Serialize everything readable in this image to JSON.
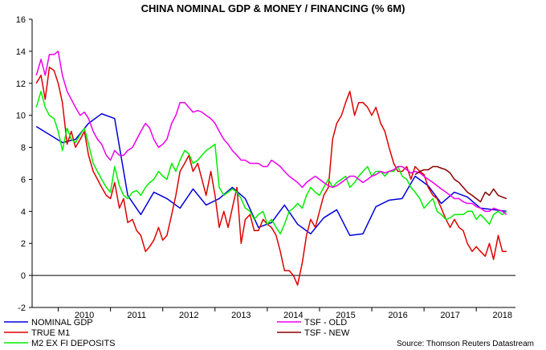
{
  "chart_data": {
    "type": "line",
    "title": "CHINA NOMINAL GDP & MONEY / FINANCING (% 6M)",
    "source": "Source: Thomson Reuters Datastream",
    "ylim": [
      -2,
      16
    ],
    "yticks": [
      -2,
      0,
      2,
      4,
      6,
      8,
      10,
      12,
      14,
      16
    ],
    "xlim": [
      2009.5,
      2018.75
    ],
    "year_labels": [
      "2010",
      "2011",
      "2012",
      "2013",
      "2014",
      "2015",
      "2016",
      "2017",
      "2018"
    ],
    "grid": false,
    "legend": "bottom",
    "series": [
      {
        "name": "NOMINAL GDP",
        "color": "#0000dd",
        "x": [
          2009.58,
          2009.83,
          2010.08,
          2010.33,
          2010.58,
          2010.83,
          2011.08,
          2011.33,
          2011.58,
          2011.83,
          2012.08,
          2012.33,
          2012.58,
          2012.83,
          2013.08,
          2013.33,
          2013.58,
          2013.83,
          2014.08,
          2014.33,
          2014.58,
          2014.83,
          2015.08,
          2015.33,
          2015.58,
          2015.83,
          2016.08,
          2016.33,
          2016.58,
          2016.83,
          2017.08,
          2017.33,
          2017.58,
          2017.83,
          2018.08,
          2018.33,
          2018.58
        ],
        "values": [
          9.3,
          8.8,
          8.3,
          8.5,
          9.5,
          10.1,
          9.8,
          5.0,
          3.8,
          5.2,
          4.8,
          4.2,
          5.4,
          4.4,
          4.8,
          5.5,
          4.8,
          3.0,
          3.3,
          4.4,
          3.2,
          2.6,
          3.6,
          4.1,
          2.5,
          2.6,
          4.3,
          4.7,
          4.8,
          6.2,
          5.6,
          4.5,
          5.2,
          4.9,
          4.2,
          4.1,
          4.0
        ]
      },
      {
        "name": "TRUE M1",
        "color": "#dd0000",
        "x": [
          2009.58,
          2009.67,
          2009.75,
          2009.83,
          2009.92,
          2010.0,
          2010.08,
          2010.17,
          2010.25,
          2010.33,
          2010.42,
          2010.5,
          2010.58,
          2010.67,
          2010.75,
          2010.83,
          2010.92,
          2011.0,
          2011.08,
          2011.17,
          2011.25,
          2011.33,
          2011.42,
          2011.5,
          2011.58,
          2011.67,
          2011.75,
          2011.83,
          2011.92,
          2012.0,
          2012.08,
          2012.17,
          2012.25,
          2012.33,
          2012.42,
          2012.5,
          2012.58,
          2012.67,
          2012.75,
          2012.83,
          2012.92,
          2013.0,
          2013.08,
          2013.17,
          2013.25,
          2013.33,
          2013.42,
          2013.5,
          2013.58,
          2013.67,
          2013.75,
          2013.83,
          2013.92,
          2014.0,
          2014.08,
          2014.17,
          2014.25,
          2014.33,
          2014.42,
          2014.5,
          2014.58,
          2014.67,
          2014.75,
          2014.83,
          2014.92,
          2015.0,
          2015.08,
          2015.17,
          2015.25,
          2015.33,
          2015.42,
          2015.5,
          2015.58,
          2015.67,
          2015.75,
          2015.83,
          2015.92,
          2016.0,
          2016.08,
          2016.17,
          2016.25,
          2016.33,
          2016.42,
          2016.5,
          2016.58,
          2016.67,
          2016.75,
          2016.83,
          2016.92,
          2017.0,
          2017.08,
          2017.17,
          2017.25,
          2017.33,
          2017.42,
          2017.5,
          2017.58,
          2017.67,
          2017.75,
          2017.83,
          2017.92,
          2018.0,
          2018.08,
          2018.17,
          2018.25,
          2018.33,
          2018.42,
          2018.5,
          2018.58
        ],
        "values": [
          12.0,
          12.5,
          11.0,
          13.0,
          12.8,
          12.0,
          10.8,
          8.2,
          9.0,
          8.0,
          8.5,
          9.0,
          7.5,
          6.5,
          6.0,
          5.5,
          5.0,
          4.8,
          5.8,
          4.2,
          4.8,
          3.3,
          3.5,
          2.8,
          2.5,
          1.5,
          1.8,
          2.2,
          3.0,
          2.2,
          2.5,
          3.8,
          5.0,
          6.5,
          7.0,
          7.5,
          6.5,
          7.0,
          6.0,
          5.0,
          6.5,
          5.0,
          3.0,
          4.0,
          3.0,
          4.2,
          5.5,
          2.0,
          3.5,
          3.8,
          2.8,
          2.8,
          3.5,
          3.2,
          3.0,
          2.5,
          1.5,
          0.3,
          0.3,
          0.0,
          -0.6,
          0.8,
          2.5,
          3.5,
          3.0,
          4.0,
          5.0,
          5.5,
          8.5,
          9.5,
          10.0,
          10.8,
          11.5,
          10.0,
          10.8,
          10.8,
          10.5,
          10.0,
          10.5,
          9.5,
          9.0,
          8.0,
          7.0,
          6.5,
          6.5,
          6.8,
          6.0,
          6.8,
          6.5,
          6.3,
          5.5,
          5.0,
          4.8,
          4.2,
          3.5,
          3.0,
          3.5,
          3.0,
          2.8,
          2.0,
          1.5,
          1.8,
          1.5,
          1.2,
          2.0,
          1.0,
          2.5,
          1.5,
          1.5
        ]
      },
      {
        "name": "M2 EX FI DEPOSITS",
        "color": "#00ee00",
        "x": [
          2009.58,
          2009.67,
          2009.75,
          2009.83,
          2009.92,
          2010.0,
          2010.08,
          2010.17,
          2010.25,
          2010.33,
          2010.42,
          2010.5,
          2010.58,
          2010.67,
          2010.75,
          2010.83,
          2010.92,
          2011.0,
          2011.08,
          2011.17,
          2011.25,
          2011.33,
          2011.42,
          2011.5,
          2011.58,
          2011.67,
          2011.75,
          2011.83,
          2011.92,
          2012.0,
          2012.08,
          2012.17,
          2012.25,
          2012.33,
          2012.42,
          2012.5,
          2012.58,
          2012.67,
          2012.75,
          2012.83,
          2012.92,
          2013.0,
          2013.08,
          2013.17,
          2013.25,
          2013.33,
          2013.42,
          2013.5,
          2013.58,
          2013.67,
          2013.75,
          2013.83,
          2013.92,
          2014.0,
          2014.08,
          2014.17,
          2014.25,
          2014.33,
          2014.42,
          2014.5,
          2014.58,
          2014.67,
          2014.75,
          2014.83,
          2014.92,
          2015.0,
          2015.08,
          2015.17,
          2015.25,
          2015.33,
          2015.42,
          2015.5,
          2015.58,
          2015.67,
          2015.75,
          2015.83,
          2015.92,
          2016.0,
          2016.08,
          2016.17,
          2016.25,
          2016.33,
          2016.42,
          2016.5,
          2016.58,
          2016.67,
          2016.75,
          2016.83,
          2016.92,
          2017.0,
          2017.08,
          2017.17,
          2017.25,
          2017.33,
          2017.42,
          2017.5,
          2017.58,
          2017.67,
          2017.75,
          2017.83,
          2017.92,
          2018.0,
          2018.08,
          2018.17,
          2018.25,
          2018.33,
          2018.42,
          2018.5,
          2018.58
        ],
        "values": [
          10.5,
          11.5,
          10.5,
          10.0,
          9.8,
          9.0,
          7.8,
          9.2,
          8.5,
          8.3,
          8.8,
          9.2,
          8.2,
          7.0,
          6.5,
          6.0,
          5.5,
          5.2,
          6.8,
          5.6,
          5.0,
          4.8,
          5.2,
          5.3,
          5.0,
          5.5,
          5.8,
          6.0,
          6.5,
          6.2,
          6.0,
          7.0,
          6.5,
          7.2,
          7.8,
          7.6,
          7.0,
          7.2,
          7.5,
          7.8,
          8.0,
          8.2,
          5.5,
          5.0,
          5.2,
          5.4,
          5.2,
          4.8,
          4.2,
          4.0,
          3.5,
          3.8,
          4.0,
          3.2,
          3.5,
          3.0,
          2.6,
          3.2,
          4.0,
          4.2,
          4.5,
          4.2,
          5.0,
          5.5,
          5.2,
          5.0,
          5.5,
          6.0,
          5.5,
          5.8,
          6.0,
          6.2,
          5.5,
          5.8,
          6.2,
          6.5,
          6.8,
          6.2,
          6.5,
          6.5,
          6.2,
          6.5,
          6.5,
          6.8,
          6.2,
          6.0,
          5.5,
          5.2,
          4.8,
          4.2,
          4.5,
          4.8,
          4.0,
          3.8,
          3.5,
          3.6,
          3.8,
          3.8,
          3.8,
          4.0,
          4.0,
          3.5,
          3.8,
          3.5,
          3.2,
          3.8,
          4.0,
          3.8,
          4.0
        ]
      },
      {
        "name": "TSF - OLD",
        "color": "#ee00ee",
        "x": [
          2009.58,
          2009.67,
          2009.75,
          2009.83,
          2009.92,
          2010.0,
          2010.08,
          2010.17,
          2010.25,
          2010.33,
          2010.42,
          2010.5,
          2010.58,
          2010.67,
          2010.75,
          2010.83,
          2010.92,
          2011.0,
          2011.08,
          2011.17,
          2011.25,
          2011.33,
          2011.42,
          2011.5,
          2011.58,
          2011.67,
          2011.75,
          2011.83,
          2011.92,
          2012.0,
          2012.08,
          2012.17,
          2012.25,
          2012.33,
          2012.42,
          2012.5,
          2012.58,
          2012.67,
          2012.75,
          2012.83,
          2012.92,
          2013.0,
          2013.08,
          2013.17,
          2013.25,
          2013.33,
          2013.42,
          2013.5,
          2013.58,
          2013.67,
          2013.75,
          2013.83,
          2013.92,
          2014.0,
          2014.08,
          2014.17,
          2014.25,
          2014.33,
          2014.42,
          2014.5,
          2014.58,
          2014.67,
          2014.75,
          2014.83,
          2014.92,
          2015.0,
          2015.08,
          2015.17,
          2015.25,
          2015.33,
          2015.42,
          2015.5,
          2015.58,
          2015.67,
          2015.75,
          2015.83,
          2015.92,
          2016.0,
          2016.08,
          2016.17,
          2016.25,
          2016.33,
          2016.42,
          2016.5,
          2016.58,
          2016.67,
          2016.75,
          2016.83,
          2016.92,
          2017.0,
          2017.08,
          2017.17,
          2017.25,
          2017.33,
          2017.42,
          2017.5,
          2017.58,
          2017.67,
          2017.75,
          2017.83,
          2017.92,
          2018.0,
          2018.08,
          2018.17,
          2018.25,
          2018.33,
          2018.42,
          2018.5,
          2018.58
        ],
        "values": [
          12.5,
          13.5,
          12.5,
          13.8,
          13.8,
          14.0,
          12.5,
          11.5,
          11.0,
          10.5,
          10.0,
          10.2,
          9.8,
          9.0,
          8.5,
          8.2,
          7.5,
          7.2,
          7.8,
          7.5,
          7.5,
          7.8,
          8.0,
          8.5,
          9.0,
          9.5,
          9.2,
          8.5,
          8.0,
          8.2,
          8.5,
          9.5,
          10.0,
          10.8,
          10.8,
          10.5,
          10.2,
          10.3,
          10.2,
          10.0,
          9.8,
          9.5,
          9.0,
          8.5,
          8.2,
          7.8,
          7.5,
          7.2,
          7.2,
          7.0,
          7.0,
          7.0,
          6.8,
          6.8,
          7.2,
          7.0,
          6.8,
          6.5,
          6.2,
          6.0,
          5.8,
          5.5,
          5.8,
          6.0,
          6.2,
          6.0,
          5.8,
          5.6,
          5.5,
          5.6,
          5.8,
          6.0,
          6.2,
          6.2,
          6.0,
          5.8,
          6.0,
          6.2,
          6.3,
          6.5,
          6.4,
          6.5,
          6.6,
          6.8,
          6.8,
          6.6,
          6.4,
          6.5,
          6.4,
          6.2,
          6.0,
          5.8,
          5.6,
          5.4,
          5.2,
          5.0,
          4.8,
          4.8,
          4.6,
          4.5,
          4.5,
          4.3,
          4.2,
          4.0,
          4.0,
          4.2,
          4.1,
          4.0,
          3.8
        ]
      },
      {
        "name": "TSF - NEW",
        "color": "#8b0000",
        "x": [
          2016.83,
          2016.92,
          2017.0,
          2017.08,
          2017.17,
          2017.25,
          2017.33,
          2017.42,
          2017.5,
          2017.58,
          2017.67,
          2017.75,
          2017.83,
          2017.92,
          2018.0,
          2018.08,
          2018.17,
          2018.25,
          2018.33,
          2018.42,
          2018.5,
          2018.58
        ],
        "values": [
          6.3,
          6.5,
          6.6,
          6.6,
          6.8,
          6.8,
          6.7,
          6.6,
          6.4,
          6.0,
          5.8,
          5.5,
          5.2,
          5.0,
          4.8,
          4.6,
          5.2,
          5.0,
          5.4,
          5.0,
          4.9,
          4.8
        ]
      }
    ]
  }
}
